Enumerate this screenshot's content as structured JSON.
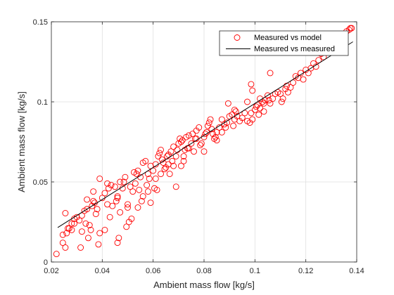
{
  "chart_data": {
    "type": "scatter",
    "xlabel": "Ambient mass flow [kg/s]",
    "ylabel": "Ambient mass flow [kg/s]",
    "xlim": [
      0.02,
      0.14
    ],
    "ylim": [
      0,
      0.15
    ],
    "xticks": [
      0.02,
      0.04,
      0.06,
      0.08,
      0.1,
      0.12,
      0.14
    ],
    "xtick_labels": [
      "0.02",
      "0.04",
      "0.06",
      "0.08",
      "0.1",
      "0.12",
      "0.14"
    ],
    "yticks": [
      0,
      0.05,
      0.1,
      0.15
    ],
    "ytick_labels": [
      "0",
      "0.05",
      "0.1",
      "0.15"
    ],
    "grid": true,
    "legend_position": "top-right",
    "colors": {
      "marker": "#ff0000",
      "line": "#000000",
      "grid": "#dfdfdf",
      "axes": "#262626"
    },
    "series": [
      {
        "name": "Measured vs model",
        "kind": "scatter",
        "marker": "circle-open",
        "points": [
          [
            0.022,
            0.005
          ],
          [
            0.0245,
            0.012
          ],
          [
            0.0255,
            0.009
          ],
          [
            0.0255,
            0.0305
          ],
          [
            0.026,
            0.018
          ],
          [
            0.0265,
            0.021
          ],
          [
            0.028,
            0.024
          ],
          [
            0.028,
            0.02
          ],
          [
            0.029,
            0.027
          ],
          [
            0.03,
            0.028
          ],
          [
            0.031,
            0.026
          ],
          [
            0.0315,
            0.009
          ],
          [
            0.032,
            0.029
          ],
          [
            0.033,
            0.032
          ],
          [
            0.0335,
            0.024
          ],
          [
            0.034,
            0.033
          ],
          [
            0.0345,
            0.015
          ],
          [
            0.035,
            0.023
          ],
          [
            0.0355,
            0.02
          ],
          [
            0.036,
            0.035
          ],
          [
            0.0365,
            0.038
          ],
          [
            0.0365,
            0.044
          ],
          [
            0.037,
            0.037
          ],
          [
            0.0375,
            0.03
          ],
          [
            0.0385,
            0.011
          ],
          [
            0.039,
            0.052
          ],
          [
            0.039,
            0.018
          ],
          [
            0.04,
            0.04
          ],
          [
            0.041,
            0.043
          ],
          [
            0.041,
            0.02
          ],
          [
            0.042,
            0.036
          ],
          [
            0.0425,
            0.046
          ],
          [
            0.043,
            0.028
          ],
          [
            0.0435,
            0.048
          ],
          [
            0.044,
            0.035
          ],
          [
            0.045,
            0.047
          ],
          [
            0.0455,
            0.038
          ],
          [
            0.046,
            0.041
          ],
          [
            0.046,
            0.012
          ],
          [
            0.0465,
            0.015
          ],
          [
            0.047,
            0.05
          ],
          [
            0.047,
            0.031
          ],
          [
            0.048,
            0.046
          ],
          [
            0.0485,
            0.05
          ],
          [
            0.049,
            0.053
          ],
          [
            0.0495,
            0.022
          ],
          [
            0.05,
            0.036
          ],
          [
            0.0505,
            0.025
          ],
          [
            0.051,
            0.047
          ],
          [
            0.0515,
            0.027
          ],
          [
            0.052,
            0.044
          ],
          [
            0.0525,
            0.056
          ],
          [
            0.053,
            0.049
          ],
          [
            0.0535,
            0.055
          ],
          [
            0.054,
            0.057
          ],
          [
            0.0545,
            0.045
          ],
          [
            0.055,
            0.053
          ],
          [
            0.0555,
            0.038
          ],
          [
            0.056,
            0.041
          ],
          [
            0.056,
            0.062
          ],
          [
            0.057,
            0.063
          ],
          [
            0.0575,
            0.048
          ],
          [
            0.058,
            0.055
          ],
          [
            0.0585,
            0.052
          ],
          [
            0.059,
            0.06
          ],
          [
            0.06,
            0.057
          ],
          [
            0.0605,
            0.046
          ],
          [
            0.061,
            0.061
          ],
          [
            0.0615,
            0.045
          ],
          [
            0.062,
            0.066
          ],
          [
            0.0625,
            0.068
          ],
          [
            0.063,
            0.07
          ],
          [
            0.0635,
            0.064
          ],
          [
            0.064,
            0.062
          ],
          [
            0.0645,
            0.058
          ],
          [
            0.065,
            0.059
          ],
          [
            0.0655,
            0.066
          ],
          [
            0.066,
            0.067
          ],
          [
            0.0665,
            0.055
          ],
          [
            0.067,
            0.069
          ],
          [
            0.0675,
            0.063
          ],
          [
            0.068,
            0.072
          ],
          [
            0.068,
            0.06
          ],
          [
            0.069,
            0.047
          ],
          [
            0.0695,
            0.07
          ],
          [
            0.07,
            0.074
          ],
          [
            0.0705,
            0.077
          ],
          [
            0.071,
            0.075
          ],
          [
            0.0715,
            0.076
          ],
          [
            0.072,
            0.063
          ],
          [
            0.0725,
            0.07
          ],
          [
            0.073,
            0.078
          ],
          [
            0.0735,
            0.071
          ],
          [
            0.074,
            0.079
          ],
          [
            0.075,
            0.074
          ],
          [
            0.0755,
            0.08
          ],
          [
            0.076,
            0.069
          ],
          [
            0.0765,
            0.077
          ],
          [
            0.077,
            0.082
          ],
          [
            0.078,
            0.084
          ],
          [
            0.0785,
            0.073
          ],
          [
            0.079,
            0.074
          ],
          [
            0.08,
            0.078
          ],
          [
            0.0805,
            0.08
          ],
          [
            0.081,
            0.081
          ],
          [
            0.0815,
            0.085
          ],
          [
            0.082,
            0.087
          ],
          [
            0.0825,
            0.089
          ],
          [
            0.083,
            0.083
          ],
          [
            0.0835,
            0.08
          ],
          [
            0.084,
            0.077
          ],
          [
            0.0845,
            0.078
          ],
          [
            0.085,
            0.081
          ],
          [
            0.086,
            0.084
          ],
          [
            0.087,
            0.089
          ],
          [
            0.088,
            0.086
          ],
          [
            0.0885,
            0.084
          ],
          [
            0.089,
            0.087
          ],
          [
            0.0895,
            0.099
          ],
          [
            0.09,
            0.091
          ],
          [
            0.091,
            0.092
          ],
          [
            0.0915,
            0.085
          ],
          [
            0.092,
            0.089
          ],
          [
            0.0925,
            0.094
          ],
          [
            0.093,
            0.091
          ],
          [
            0.094,
            0.088
          ],
          [
            0.095,
            0.09
          ],
          [
            0.096,
            0.093
          ],
          [
            0.097,
            0.088
          ],
          [
            0.098,
            0.087
          ],
          [
            0.0985,
            0.093
          ],
          [
            0.099,
            0.089
          ],
          [
            0.1,
            0.095
          ],
          [
            0.1005,
            0.097
          ],
          [
            0.101,
            0.098
          ],
          [
            0.1015,
            0.092
          ],
          [
            0.102,
            0.096
          ],
          [
            0.103,
            0.1
          ],
          [
            0.1035,
            0.099
          ],
          [
            0.104,
            0.101
          ],
          [
            0.105,
            0.104
          ],
          [
            0.1055,
            0.101
          ],
          [
            0.106,
            0.099
          ],
          [
            0.107,
            0.102
          ],
          [
            0.108,
            0.105
          ],
          [
            0.109,
            0.106
          ],
          [
            0.11,
            0.105
          ],
          [
            0.1105,
            0.1
          ],
          [
            0.111,
            0.102
          ],
          [
            0.112,
            0.108
          ],
          [
            0.1125,
            0.11
          ],
          [
            0.113,
            0.106
          ],
          [
            0.114,
            0.109
          ],
          [
            0.115,
            0.112
          ],
          [
            0.116,
            0.116
          ],
          [
            0.117,
            0.115
          ],
          [
            0.118,
            0.118
          ],
          [
            0.119,
            0.114
          ],
          [
            0.12,
            0.12
          ],
          [
            0.121,
            0.118
          ],
          [
            0.122,
            0.121
          ],
          [
            0.123,
            0.124
          ],
          [
            0.124,
            0.122
          ],
          [
            0.125,
            0.126
          ],
          [
            0.126,
            0.13
          ],
          [
            0.127,
            0.128
          ],
          [
            0.128,
            0.131
          ],
          [
            0.13,
            0.134
          ],
          [
            0.131,
            0.136
          ],
          [
            0.132,
            0.137
          ],
          [
            0.133,
            0.138
          ],
          [
            0.1345,
            0.14
          ],
          [
            0.135,
            0.137
          ],
          [
            0.136,
            0.144
          ],
          [
            0.137,
            0.145
          ],
          [
            0.1375,
            0.146
          ],
          [
            0.138,
            0.146
          ],
          [
            0.0985,
            0.111
          ],
          [
            0.099,
            0.107
          ],
          [
            0.1035,
            0.094
          ],
          [
            0.106,
            0.118
          ],
          [
            0.102,
            0.102
          ],
          [
            0.097,
            0.1
          ],
          [
            0.092,
            0.095
          ],
          [
            0.087,
            0.081
          ],
          [
            0.085,
            0.076
          ],
          [
            0.08,
            0.069
          ],
          [
            0.072,
            0.066
          ],
          [
            0.063,
            0.055
          ],
          [
            0.058,
            0.044
          ],
          [
            0.054,
            0.034
          ],
          [
            0.05,
            0.034
          ],
          [
            0.046,
            0.04
          ],
          [
            0.042,
            0.049
          ],
          [
            0.038,
            0.033
          ],
          [
            0.034,
            0.039
          ],
          [
            0.032,
            0.019
          ],
          [
            0.029,
            0.024
          ],
          [
            0.027,
            0.021
          ],
          [
            0.0245,
            0.017
          ],
          [
            0.059,
            0.037
          ],
          [
            0.061,
            0.052
          ],
          [
            0.066,
            0.061
          ],
          [
            0.069,
            0.066
          ],
          [
            0.071,
            0.06
          ],
          [
            0.074,
            0.071
          ],
          [
            0.077,
            0.077
          ]
        ]
      },
      {
        "name": "Measured vs measured",
        "kind": "line",
        "points": [
          [
            0.0225,
            0.0215
          ],
          [
            0.1385,
            0.1375
          ]
        ]
      }
    ]
  }
}
